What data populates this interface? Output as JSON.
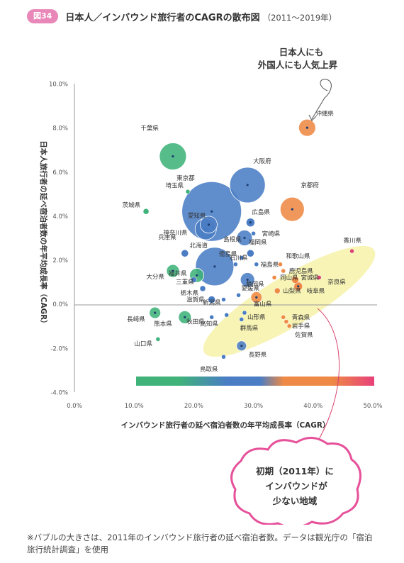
{
  "header": {
    "figure_badge": "図34",
    "title": "日本人／インバウンド旅行者のCAGRの散布図",
    "years": "（2011〜2019年）"
  },
  "annotations": {
    "top_line1": "日本人にも",
    "top_line2": "外国人にも人気上昇",
    "bottom_line1": "初期（2011年）に",
    "bottom_line2": "インバウンドが",
    "bottom_line3": "少ない地域"
  },
  "footnote": {
    "line1": "※バブルの大きさは、2011年のインバウンド旅行者の延べ宿泊者数。データは観光庁の「宿泊",
    "line2": "旅行統計調査」を使用"
  },
  "chart_data": {
    "type": "scatter",
    "title": "日本人／インバウンド旅行者のCAGRの散布図",
    "xlabel": "インバウンド旅行者の延べ宿泊者数の年平均成長率（CAGR）",
    "ylabel": "日本人旅行者の延べ宿泊者数の年平均成長率（CAGR）",
    "xlim": [
      0,
      50
    ],
    "ylim": [
      -4,
      10
    ],
    "x_ticks": [
      "0.0%",
      "10.0%",
      "20.0%",
      "30.0%",
      "40.0%",
      "50.0%"
    ],
    "y_ticks": [
      "10.0%",
      "8.0%",
      "6.0%",
      "4.0%",
      "2.0%",
      "0.0%",
      "-2.0%",
      "-4.0%"
    ],
    "grid": false,
    "colors": {
      "green": "#3fb37a",
      "blue": "#4a7dc4",
      "orange": "#ee8a45",
      "red": "#d9446e",
      "highlight": "#f6f1a2",
      "gradient_bar": [
        "#3fb37a",
        "#4a7dc4",
        "#ee8a45",
        "#e8407a"
      ]
    },
    "points": [
      {
        "name": "沖縄県",
        "x": 39.0,
        "y": 8.0,
        "size": 12,
        "color": "orange"
      },
      {
        "name": "千葉県",
        "x": 16.5,
        "y": 6.7,
        "size": 19,
        "color": "green"
      },
      {
        "name": "大阪府",
        "x": 29.0,
        "y": 5.4,
        "size": 25,
        "color": "blue"
      },
      {
        "name": "東京都",
        "x": 23.0,
        "y": 4.2,
        "size": 42,
        "color": "blue"
      },
      {
        "name": "埼玉県",
        "x": 19.0,
        "y": 5.1,
        "size": 3,
        "color": "green"
      },
      {
        "name": "京都府",
        "x": 36.5,
        "y": 4.3,
        "size": 17,
        "color": "orange"
      },
      {
        "name": "茨城県",
        "x": 12.0,
        "y": 4.2,
        "size": 4,
        "color": "green"
      },
      {
        "name": "愛知県",
        "x": 22.5,
        "y": 3.6,
        "size": 12,
        "color": "blue"
      },
      {
        "name": "広島県",
        "x": 29.5,
        "y": 3.7,
        "size": 6,
        "color": "blue"
      },
      {
        "name": "神奈川県",
        "x": 22.0,
        "y": 3.4,
        "size": 15,
        "color": "blue"
      },
      {
        "name": "宮崎県",
        "x": 30.0,
        "y": 3.2,
        "size": 3,
        "color": "blue"
      },
      {
        "name": "福岡県",
        "x": 28.5,
        "y": 3.0,
        "size": 11,
        "color": "blue"
      },
      {
        "name": "香川県",
        "x": 46.5,
        "y": 2.4,
        "size": 3,
        "color": "red"
      },
      {
        "name": "兵庫県",
        "x": 18.5,
        "y": 2.3,
        "size": 5,
        "color": "blue"
      },
      {
        "name": "北海道",
        "x": 23.5,
        "y": 1.7,
        "size": 27,
        "color": "blue"
      },
      {
        "name": "島根県",
        "x": 28.0,
        "y": 2.1,
        "size": 3,
        "color": "blue"
      },
      {
        "name": "徳島県",
        "x": 27.0,
        "y": 1.8,
        "size": 3,
        "color": "blue"
      },
      {
        "name": "石川県",
        "x": 29.5,
        "y": 2.3,
        "size": 5,
        "color": "blue"
      },
      {
        "name": "和歌山県",
        "x": 34.5,
        "y": 1.8,
        "size": 3,
        "color": "orange"
      },
      {
        "name": "福島県",
        "x": 30.5,
        "y": 1.8,
        "size": 3,
        "color": "blue"
      },
      {
        "name": "大分県",
        "x": 16.5,
        "y": 1.5,
        "size": 9,
        "color": "green"
      },
      {
        "name": "鹿児島県",
        "x": 35.0,
        "y": 1.5,
        "size": 3,
        "color": "orange"
      },
      {
        "name": "岡山県",
        "x": 33.5,
        "y": 1.2,
        "size": 3,
        "color": "orange"
      },
      {
        "name": "三重県",
        "x": 20.5,
        "y": 1.3,
        "size": 10,
        "color": "green"
      },
      {
        "name": "宮城県",
        "x": 37.0,
        "y": 1.1,
        "size": 5,
        "color": "orange"
      },
      {
        "name": "奈良県",
        "x": 41.0,
        "y": 1.2,
        "size": 3,
        "color": "red"
      },
      {
        "name": "静岡県",
        "x": 29.0,
        "y": 1.1,
        "size": 10,
        "color": "blue"
      },
      {
        "name": "福井県",
        "x": 20.0,
        "y": 1.1,
        "size": 4,
        "color": "blue"
      },
      {
        "name": "栃木県",
        "x": 21.5,
        "y": 0.7,
        "size": 4,
        "color": "blue"
      },
      {
        "name": "岐阜県",
        "x": 37.5,
        "y": 0.8,
        "size": 6,
        "color": "orange"
      },
      {
        "name": "愛媛県",
        "x": 27.5,
        "y": 0.4,
        "size": 3,
        "color": "blue"
      },
      {
        "name": "山梨県",
        "x": 34.0,
        "y": 0.6,
        "size": 4,
        "color": "orange"
      },
      {
        "name": "滋賀県",
        "x": 23.0,
        "y": 0.2,
        "size": 5,
        "color": "blue"
      },
      {
        "name": "新潟県",
        "x": 25.0,
        "y": 0.2,
        "size": 3,
        "color": "blue"
      },
      {
        "name": "富山県",
        "x": 30.5,
        "y": 0.3,
        "size": 8,
        "color": "orange"
      },
      {
        "name": "長崎県",
        "x": 13.5,
        "y": -0.4,
        "size": 8,
        "color": "green"
      },
      {
        "name": "熊本県",
        "x": 18.5,
        "y": -0.6,
        "size": 9,
        "color": "green"
      },
      {
        "name": "秋田県",
        "x": 23.0,
        "y": -0.6,
        "size": 3,
        "color": "blue"
      },
      {
        "name": "山形県",
        "x": 28.5,
        "y": -0.4,
        "size": 3,
        "color": "blue"
      },
      {
        "name": "青森県",
        "x": 35.0,
        "y": -0.6,
        "size": 3,
        "color": "orange"
      },
      {
        "name": "高知県",
        "x": 25.5,
        "y": -0.5,
        "size": 3,
        "color": "blue"
      },
      {
        "name": "群馬県",
        "x": 28.0,
        "y": -0.7,
        "size": 3,
        "color": "blue"
      },
      {
        "name": "岩手県",
        "x": 35.5,
        "y": -0.8,
        "size": 3,
        "color": "orange"
      },
      {
        "name": "佐賀県",
        "x": 36.0,
        "y": -1.0,
        "size": 3,
        "color": "orange"
      },
      {
        "name": "山口県",
        "x": 14.0,
        "y": -1.6,
        "size": 3,
        "color": "green"
      },
      {
        "name": "長野県",
        "x": 28.0,
        "y": -1.9,
        "size": 7,
        "color": "blue"
      },
      {
        "name": "鳥取県",
        "x": 25.0,
        "y": -2.4,
        "size": 3,
        "color": "blue"
      }
    ]
  }
}
